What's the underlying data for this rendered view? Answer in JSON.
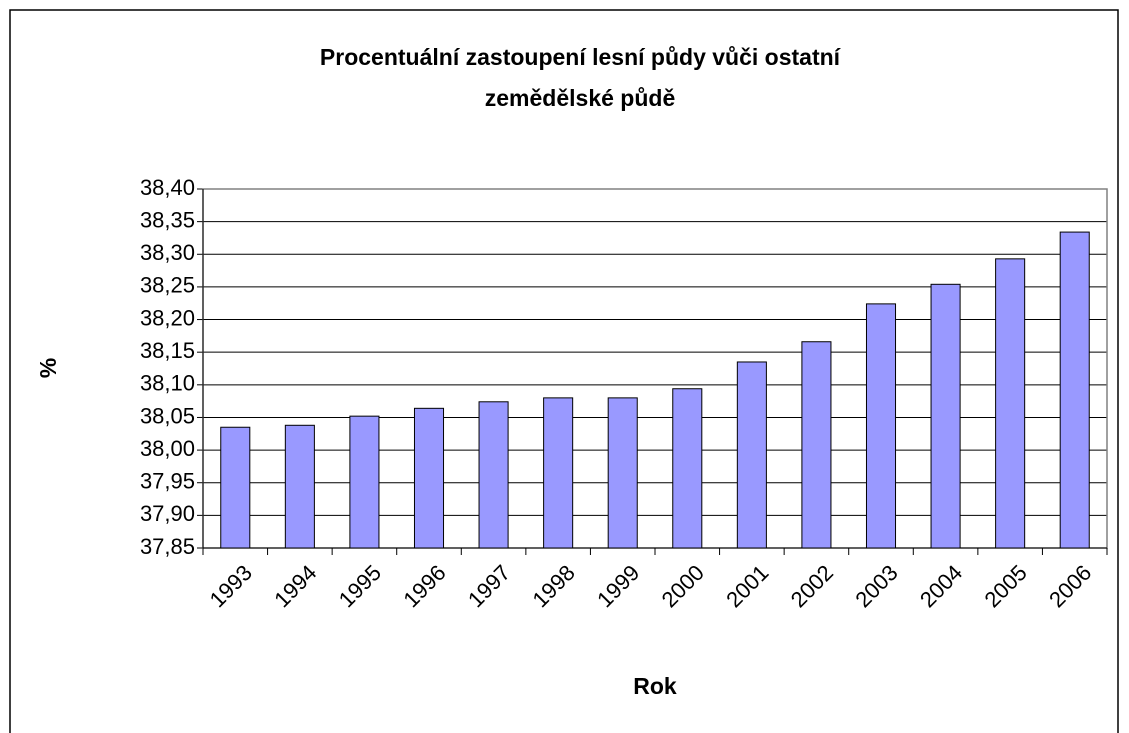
{
  "chart_data": {
    "type": "bar",
    "title": [
      "Procentuální zastoupení lesní půdy vůči ostatní",
      "zemědělské půdě"
    ],
    "x_label": "Rok",
    "y_label": "%",
    "categories": [
      "1993",
      "1994",
      "1995",
      "1996",
      "1997",
      "1998",
      "1999",
      "2000",
      "2001",
      "2002",
      "2003",
      "2004",
      "2005",
      "2006"
    ],
    "values": [
      38.035,
      38.038,
      38.052,
      38.064,
      38.074,
      38.08,
      38.08,
      38.094,
      38.135,
      38.166,
      38.224,
      38.254,
      38.293,
      38.334
    ],
    "color": "#9999ff",
    "ylim": [
      37.85,
      38.4
    ],
    "yticks": [
      {
        "value": 37.85,
        "label": "37,85"
      },
      {
        "value": 37.9,
        "label": "37,90"
      },
      {
        "value": 37.95,
        "label": "37,95"
      },
      {
        "value": 38.0,
        "label": "38,00"
      },
      {
        "value": 38.05,
        "label": "38,05"
      },
      {
        "value": 38.1,
        "label": "38,10"
      },
      {
        "value": 38.15,
        "label": "38,15"
      },
      {
        "value": 38.2,
        "label": "38,20"
      },
      {
        "value": 38.25,
        "label": "38,25"
      },
      {
        "value": 38.3,
        "label": "38,30"
      },
      {
        "value": 38.35,
        "label": "38,35"
      },
      {
        "value": 38.4,
        "label": "38,40"
      }
    ],
    "grid": true
  }
}
